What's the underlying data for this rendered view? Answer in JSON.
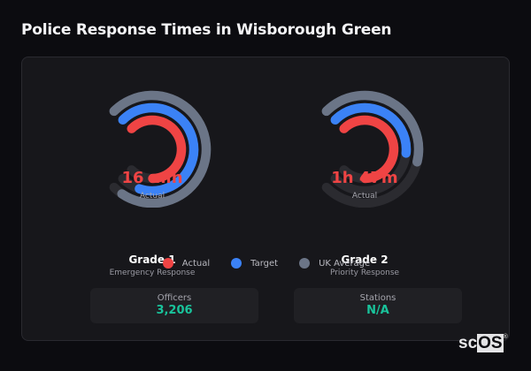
{
  "header": {
    "title": "Police Response Times in Wisborough Green"
  },
  "colors": {
    "actual": "#ef4444",
    "target": "#3b82f6",
    "uk_average": "#6b7587",
    "track": "#2b2b30",
    "stat_value": "#19c39b"
  },
  "gauges": [
    {
      "value_label": "16 min",
      "sub_label": "Actual",
      "title": "Grade 1",
      "description": "Emergency Response"
    },
    {
      "value_label": "1h 47m",
      "sub_label": "Actual",
      "title": "Grade 2",
      "description": "Priority Response"
    }
  ],
  "legend": [
    {
      "label": "Actual"
    },
    {
      "label": "Target"
    },
    {
      "label": "UK Average"
    }
  ],
  "stats": [
    {
      "label": "Officers",
      "value": "3,206"
    },
    {
      "label": "Stations",
      "value": "N/A"
    }
  ],
  "brand": {
    "prefix": "sc",
    "suffix": "OS",
    "mark": "®"
  },
  "chart_data": {
    "type": "radial-bar",
    "title": "Police Response Times in Wisborough Green",
    "start_angle_deg": 225,
    "sweep_deg": 270,
    "legend": [
      "Actual",
      "Target",
      "UK Average"
    ],
    "legend_position": "bottom",
    "categories": [
      "Grade 1 - Emergency Response",
      "Grade 2 - Priority Response"
    ],
    "center_labels": [
      "16 min",
      "1h 47m"
    ],
    "series": [
      {
        "name": "Actual",
        "color": "#ef4444",
        "fill_fraction": [
          0.83,
          0.83
        ]
      },
      {
        "name": "Target",
        "color": "#3b82f6",
        "fill_fraction": [
          0.9,
          0.52
        ]
      },
      {
        "name": "UK Average",
        "color": "#6b7587",
        "fill_fraction": [
          0.96,
          0.55
        ]
      }
    ]
  }
}
